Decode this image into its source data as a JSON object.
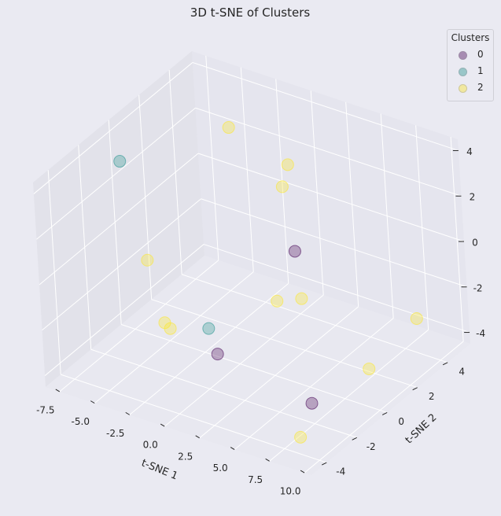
{
  "chart_data": {
    "type": "scatter",
    "title": "3D t-SNE of Clusters",
    "xlabel": "t-SNE 1",
    "ylabel": "t-SNE 2",
    "zlabel": "",
    "xlim": [
      -8.5,
      10.5
    ],
    "ylim": [
      -5,
      5.5
    ],
    "zlim": [
      -4.5,
      4.5
    ],
    "xticks": [
      "-7.5",
      "-5.0",
      "-2.5",
      "0.0",
      "2.5",
      "5.0",
      "7.5",
      "10.0"
    ],
    "yticks": [
      "-4",
      "-2",
      "0",
      "2",
      "4"
    ],
    "zticks": [
      "-4",
      "-2",
      "0",
      "2",
      "4"
    ],
    "grid": true,
    "legend_title": "Clusters",
    "legend_placement": "top-right",
    "series": [
      {
        "name": "0",
        "color": "#440154",
        "points": [
          {
            "x": 3.8,
            "y": 0.6,
            "z": 0.9
          },
          {
            "x": 8.3,
            "y": -2.8,
            "z": -3.0
          },
          {
            "x": 0.6,
            "y": -1.9,
            "z": -2.9
          }
        ]
      },
      {
        "name": "1",
        "color": "#21918c",
        "points": [
          {
            "x": -7.3,
            "y": -0.5,
            "z": 3.2
          },
          {
            "x": -0.4,
            "y": -1.5,
            "z": -2.2
          }
        ]
      },
      {
        "name": "2",
        "color": "#fde725",
        "points": [
          {
            "x": -2.8,
            "y": 2.6,
            "z": 3.9
          },
          {
            "x": 0.3,
            "y": 3.5,
            "z": 2.4
          },
          {
            "x": 0.5,
            "y": 2.9,
            "z": 1.8
          },
          {
            "x": -4.8,
            "y": -1.3,
            "z": -0.2
          },
          {
            "x": -3.0,
            "y": -2.0,
            "z": -2.2
          },
          {
            "x": -2.5,
            "y": -2.1,
            "z": -2.3
          },
          {
            "x": 3.9,
            "y": -0.8,
            "z": -0.5
          },
          {
            "x": 5.0,
            "y": -0.2,
            "z": -0.5
          },
          {
            "x": 8.8,
            "y": 0.5,
            "z": -3.2
          },
          {
            "x": 9.6,
            "y": 3.0,
            "z": -2.2
          },
          {
            "x": 7.9,
            "y": -3.3,
            "z": -4.3
          }
        ]
      }
    ]
  }
}
